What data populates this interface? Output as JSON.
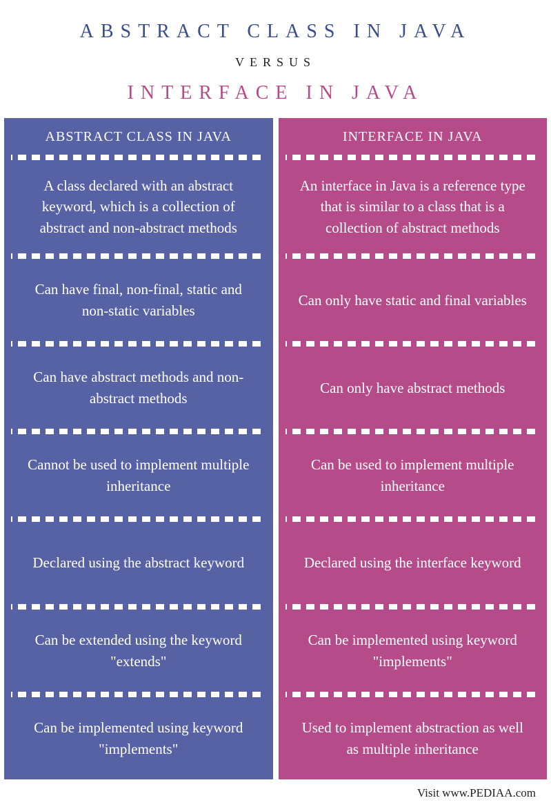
{
  "header": {
    "title_top": "ABSTRACT CLASS IN JAVA",
    "versus": "VERSUS",
    "title_bottom": "INTERFACE IN JAVA",
    "top_color": "#3b4e8c",
    "bottom_color": "#b64b8a",
    "versus_color": "#222222"
  },
  "columns": {
    "left": {
      "bg_color": "#5762a5",
      "header": "ABSTRACT CLASS IN JAVA",
      "cells": [
        "A class declared with an abstract keyword, which is a collection of abstract and non-abstract methods",
        "Can have final, non-final, static and non-static variables",
        "Can have abstract methods and non-abstract methods",
        "Cannot be used to implement multiple inheritance",
        "Declared using the abstract keyword",
        "Can be extended using the keyword \"extends\"",
        "Can be implemented using keyword \"implements\""
      ]
    },
    "right": {
      "bg_color": "#b64b8a",
      "header": "INTERFACE IN JAVA",
      "cells": [
        "An interface in Java is a reference type that is similar to a class that is a collection of abstract methods",
        "Can only have static and final variables",
        "Can only have abstract methods",
        "Can be used to implement multiple inheritance",
        "Declared using the interface keyword",
        "Can be implemented using keyword \"implements\"",
        "Used to implement abstraction as well as multiple inheritance"
      ]
    }
  },
  "footer": {
    "text": "Visit www.PEDIAA.com"
  }
}
